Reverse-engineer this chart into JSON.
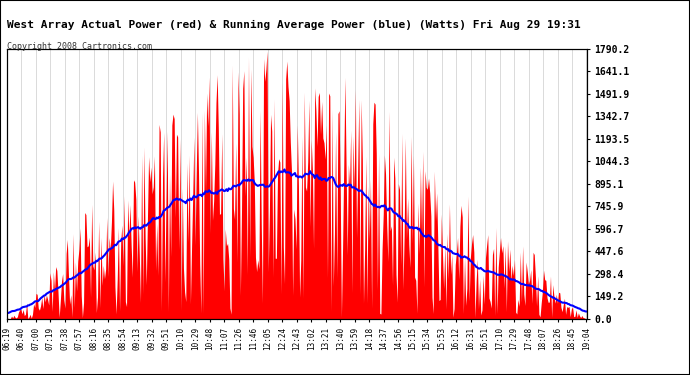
{
  "title": "West Array Actual Power (red) & Running Average Power (blue) (Watts) Fri Aug 29 19:31",
  "copyright": "Copyright 2008 Cartronics.com",
  "bg_color": "#ffffff",
  "plot_bg_color": "#ffffff",
  "grid_color": "#cccccc",
  "red_color": "#ff0000",
  "blue_color": "#0000ff",
  "ymax": 1790.2,
  "ymin": 0.0,
  "yticks": [
    0.0,
    149.2,
    298.4,
    447.6,
    596.7,
    745.9,
    895.1,
    1044.3,
    1193.5,
    1342.7,
    1491.9,
    1641.1,
    1790.2
  ],
  "ytick_labels": [
    "0.0",
    "149.2",
    "298.4",
    "447.6",
    "596.7",
    "745.9",
    "895.1",
    "1044.3",
    "1193.5",
    "1342.7",
    "1491.9",
    "1641.1",
    "1790.2"
  ],
  "xtick_labels": [
    "06:19",
    "06:40",
    "07:00",
    "07:19",
    "07:38",
    "07:57",
    "08:16",
    "08:35",
    "08:54",
    "09:13",
    "09:32",
    "09:51",
    "10:10",
    "10:29",
    "10:48",
    "11:07",
    "11:26",
    "11:46",
    "12:05",
    "12:24",
    "12:43",
    "13:02",
    "13:21",
    "13:40",
    "13:59",
    "14:18",
    "14:37",
    "14:56",
    "15:15",
    "15:34",
    "15:53",
    "16:12",
    "16:31",
    "16:51",
    "17:10",
    "17:29",
    "17:48",
    "18:07",
    "18:26",
    "18:45",
    "19:04"
  ],
  "n_points": 500
}
